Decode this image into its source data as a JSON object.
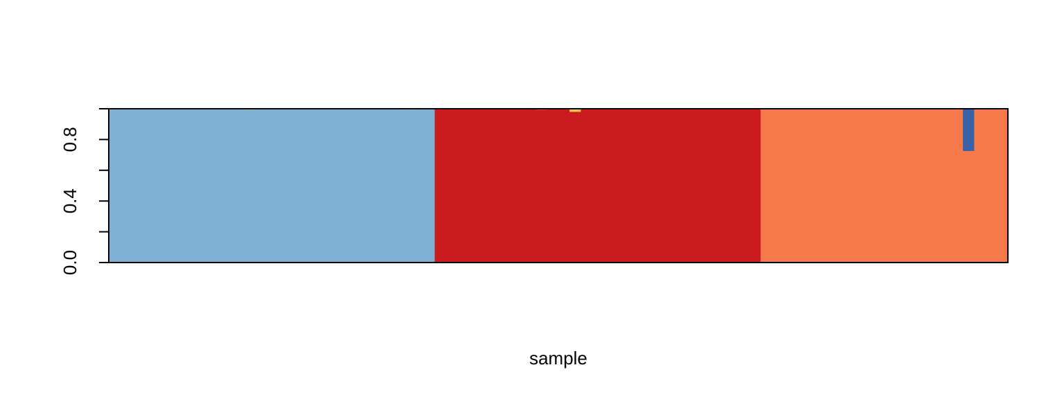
{
  "chart_data": {
    "type": "bar",
    "stacked": true,
    "title": "",
    "xlabel": "sample",
    "ylabel": "",
    "ylim": [
      0,
      1
    ],
    "y_ticks": [
      0.0,
      0.2,
      0.4,
      0.6,
      0.8,
      1.0
    ],
    "y_tick_labels": [
      "0.0",
      "",
      "0.4",
      "",
      "0.8",
      ""
    ],
    "x_tick_labels_shown": false,
    "grid": false,
    "legend": "none",
    "n_samples": 80,
    "series": [
      {
        "color": "#7FB0D3"
      },
      {
        "color": "#CB1B1E"
      },
      {
        "color": "#F67A49"
      },
      {
        "color": "#3A62A8"
      },
      {
        "color": "#F6C93E"
      }
    ],
    "groups": [
      {
        "cluster": 0,
        "start": 0,
        "count": 29,
        "cluster_value": 1.0
      },
      {
        "cluster": 1,
        "start": 29,
        "count": 29,
        "cluster_value": 1.0
      },
      {
        "cluster": 2,
        "start": 58,
        "count": 22,
        "cluster_value": 1.0
      }
    ],
    "exceptions": [
      {
        "sample": 12,
        "values": [
          0.995,
          0,
          0,
          0,
          0.005
        ]
      },
      {
        "sample": 26,
        "values": [
          0.995,
          0,
          0,
          0,
          0.005
        ]
      },
      {
        "sample": 38,
        "values": [
          0,
          0.995,
          0,
          0,
          0.005
        ]
      },
      {
        "sample": 41,
        "values": [
          0,
          0.98,
          0,
          0,
          0.02
        ]
      },
      {
        "sample": 76,
        "values": [
          0,
          0,
          0.725,
          0.275,
          0
        ]
      }
    ]
  }
}
